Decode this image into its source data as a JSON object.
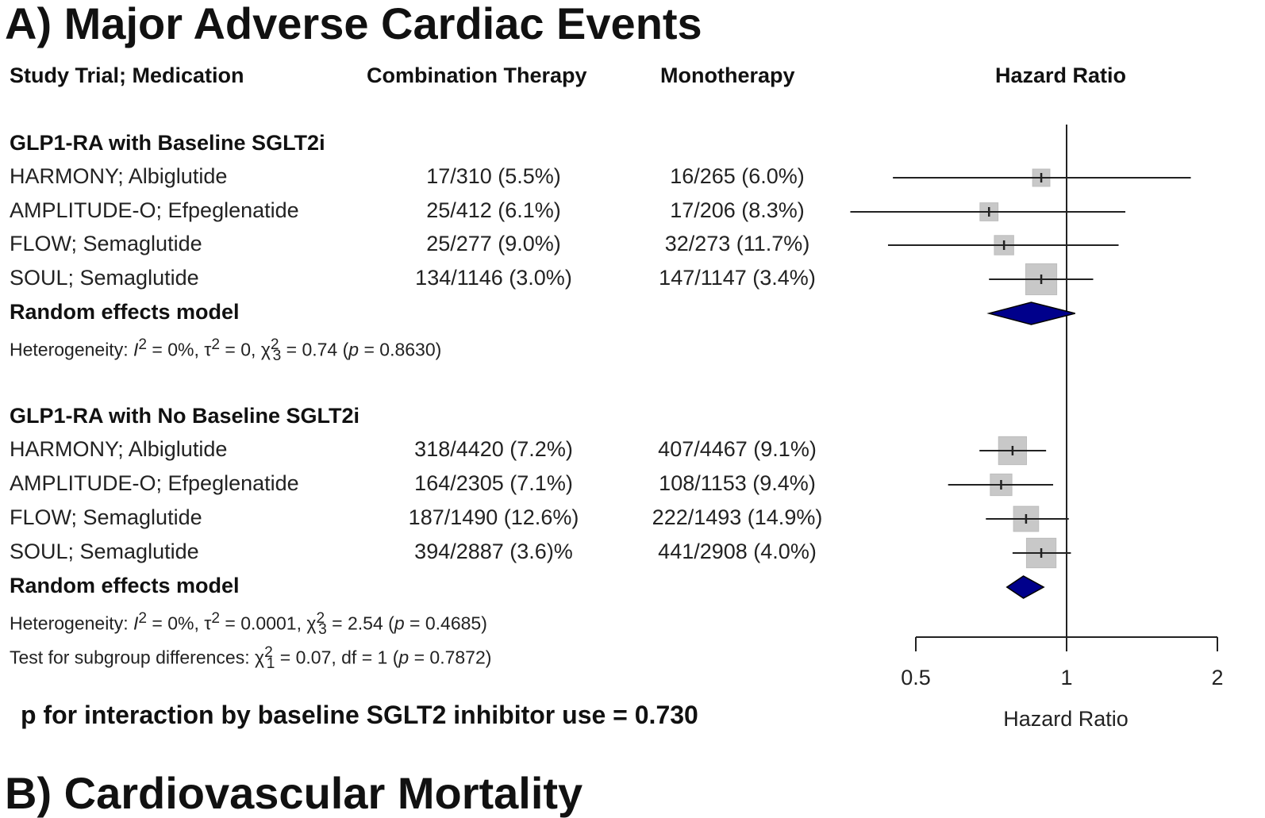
{
  "panel_title": "A) Major Adverse Cardiac Events",
  "next_panel_title": "B) Cardiovascular Mortality",
  "columns": {
    "study": "Study Trial; Medication",
    "combination": "Combination Therapy",
    "monotherapy": "Monotherapy",
    "hazard_ratio": "Hazard Ratio"
  },
  "groups": [
    {
      "label": "GLP1-RA with Baseline SGLT2i",
      "rows": [
        {
          "study": "HARMONY; Albiglutide",
          "combination": "17/310 (5.5%)",
          "monotherapy": "16/265 (6.0%)"
        },
        {
          "study": "AMPLITUDE-O; Efpeglenatide",
          "combination": "25/412 (6.1%)",
          "monotherapy": "17/206 (8.3%)"
        },
        {
          "study": "FLOW; Semaglutide",
          "combination": "25/277 (9.0%)",
          "monotherapy": "32/273 (11.7%)"
        },
        {
          "study": "SOUL; Semaglutide",
          "combination": "134/1146 (3.0%)",
          "monotherapy": "147/1147 (3.4%)"
        }
      ],
      "model_label": "Random effects model",
      "heterogeneity": {
        "prefix": "Heterogeneity: ",
        "I2": "0%",
        "tau2": "0",
        "chi_df": "3",
        "chi2": "0.74",
        "p": "0.8630"
      }
    },
    {
      "label": "GLP1-RA with No Baseline SGLT2i",
      "rows": [
        {
          "study": "HARMONY; Albiglutide",
          "combination": "318/4420 (7.2%)",
          "monotherapy": "407/4467 (9.1%)"
        },
        {
          "study": "AMPLITUDE-O; Efpeglenatide",
          "combination": "164/2305 (7.1%)",
          "monotherapy": "108/1153 (9.4%)"
        },
        {
          "study": "FLOW; Semaglutide",
          "combination": "187/1490 (12.6%)",
          "monotherapy": "222/1493 (14.9%)"
        },
        {
          "study": "SOUL; Semaglutide",
          "combination": "394/2887 (3.6)%",
          "monotherapy": "441/2908 (4.0%)"
        }
      ],
      "model_label": "Random effects model",
      "heterogeneity": {
        "prefix": "Heterogeneity: ",
        "I2": "0%",
        "tau2": "0.0001",
        "chi_df": "3",
        "chi2": "2.54",
        "p": "0.4685"
      }
    }
  ],
  "subgroup_test": {
    "prefix": "Test for subgroup differences: ",
    "chi_df": "1",
    "chi2": "0.07",
    "df": "1",
    "p": "0.7872"
  },
  "p_interaction": "p for interaction by baseline SGLT2 inhibitor use = 0.730",
  "colors": {
    "diamond": "#00008B",
    "box": "#C8C8C8",
    "line": "#222222"
  },
  "chart_data": {
    "type": "forest",
    "title": "A) Major Adverse Cardiac Events",
    "xlabel": "Hazard Ratio",
    "xscale": "log",
    "xlim": [
      0.5,
      2
    ],
    "xticks": [
      "0.5",
      "1",
      "2"
    ],
    "reference_line": 1,
    "series": [
      {
        "name": "GLP1-RA with Baseline SGLT2i",
        "studies": [
          {
            "name": "HARMONY; Albiglutide",
            "hr": 0.89,
            "lo": 0.45,
            "hi": 1.77,
            "weight": 0.05
          },
          {
            "name": "AMPLITUDE-O; Efpeglenatide",
            "hr": 0.7,
            "lo": 0.37,
            "hi": 1.31,
            "weight": 0.06
          },
          {
            "name": "FLOW; Semaglutide",
            "hr": 0.75,
            "lo": 0.44,
            "hi": 1.27,
            "weight": 0.08
          },
          {
            "name": "SOUL; Semaglutide",
            "hr": 0.89,
            "lo": 0.7,
            "hi": 1.13,
            "weight": 0.38
          }
        ],
        "pooled": {
          "hr": 0.85,
          "lo": 0.7,
          "hi": 1.04
        }
      },
      {
        "name": "GLP1-RA with No Baseline SGLT2i",
        "studies": [
          {
            "name": "HARMONY; Albiglutide",
            "hr": 0.78,
            "lo": 0.67,
            "hi": 0.91,
            "weight": 0.28
          },
          {
            "name": "AMPLITUDE-O; Efpeglenatide",
            "hr": 0.74,
            "lo": 0.58,
            "hi": 0.94,
            "weight": 0.12
          },
          {
            "name": "FLOW; Semaglutide",
            "hr": 0.83,
            "lo": 0.69,
            "hi": 1.01,
            "weight": 0.2
          },
          {
            "name": "SOUL; Semaglutide",
            "hr": 0.89,
            "lo": 0.78,
            "hi": 1.02,
            "weight": 0.33
          }
        ],
        "pooled": {
          "hr": 0.82,
          "lo": 0.76,
          "hi": 0.9
        }
      }
    ]
  }
}
